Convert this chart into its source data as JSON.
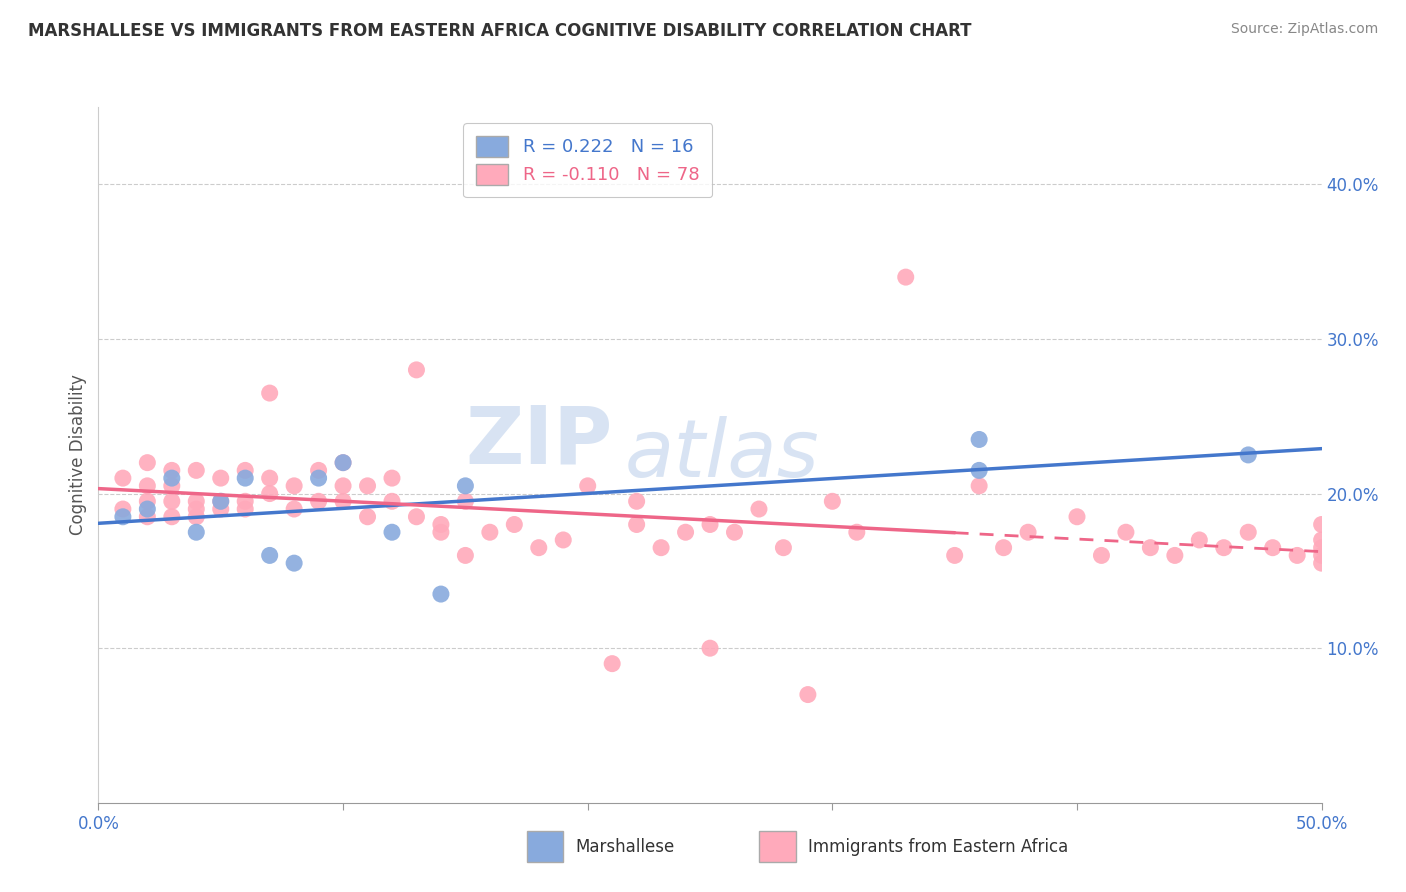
{
  "title": "MARSHALLESE VS IMMIGRANTS FROM EASTERN AFRICA COGNITIVE DISABILITY CORRELATION CHART",
  "source": "Source: ZipAtlas.com",
  "ylabel": "Cognitive Disability",
  "xlim": [
    0.0,
    0.5
  ],
  "ylim": [
    0.0,
    0.45
  ],
  "xticks": [
    0.0,
    0.1,
    0.2,
    0.3,
    0.4,
    0.5
  ],
  "xticklabels": [
    "0.0%",
    "",
    "",
    "",
    "",
    "50.0%"
  ],
  "yticks": [
    0.1,
    0.2,
    0.3,
    0.4
  ],
  "yticklabels": [
    "10.0%",
    "20.0%",
    "30.0%",
    "40.0%"
  ],
  "blue_color": "#88AADD",
  "pink_color": "#FFAABB",
  "blue_line_color": "#4477CC",
  "pink_line_color": "#EE6688",
  "blue_R": 0.222,
  "blue_N": 16,
  "pink_R": -0.11,
  "pink_N": 78,
  "watermark_zip": "ZIP",
  "watermark_atlas": "atlas",
  "blue_x": [
    0.01,
    0.02,
    0.03,
    0.04,
    0.05,
    0.06,
    0.07,
    0.08,
    0.09,
    0.1,
    0.12,
    0.14,
    0.15,
    0.36,
    0.36,
    0.47
  ],
  "blue_y": [
    0.185,
    0.19,
    0.21,
    0.175,
    0.195,
    0.21,
    0.16,
    0.155,
    0.21,
    0.22,
    0.175,
    0.135,
    0.205,
    0.235,
    0.215,
    0.225
  ],
  "pink_x": [
    0.01,
    0.01,
    0.02,
    0.02,
    0.02,
    0.02,
    0.03,
    0.03,
    0.03,
    0.03,
    0.04,
    0.04,
    0.04,
    0.04,
    0.05,
    0.05,
    0.05,
    0.06,
    0.06,
    0.06,
    0.07,
    0.07,
    0.07,
    0.08,
    0.08,
    0.09,
    0.09,
    0.1,
    0.1,
    0.1,
    0.11,
    0.11,
    0.12,
    0.12,
    0.13,
    0.13,
    0.14,
    0.14,
    0.15,
    0.15,
    0.16,
    0.17,
    0.18,
    0.19,
    0.2,
    0.21,
    0.22,
    0.22,
    0.23,
    0.24,
    0.25,
    0.25,
    0.26,
    0.27,
    0.28,
    0.29,
    0.3,
    0.31,
    0.33,
    0.35,
    0.36,
    0.37,
    0.38,
    0.4,
    0.41,
    0.42,
    0.43,
    0.44,
    0.45,
    0.46,
    0.47,
    0.48,
    0.49,
    0.5,
    0.5,
    0.5,
    0.5,
    0.5
  ],
  "pink_y": [
    0.19,
    0.21,
    0.185,
    0.195,
    0.205,
    0.22,
    0.185,
    0.195,
    0.205,
    0.215,
    0.185,
    0.19,
    0.195,
    0.215,
    0.19,
    0.195,
    0.21,
    0.19,
    0.195,
    0.215,
    0.265,
    0.2,
    0.21,
    0.19,
    0.205,
    0.195,
    0.215,
    0.195,
    0.205,
    0.22,
    0.205,
    0.185,
    0.195,
    0.21,
    0.28,
    0.185,
    0.175,
    0.18,
    0.195,
    0.16,
    0.175,
    0.18,
    0.165,
    0.17,
    0.205,
    0.09,
    0.18,
    0.195,
    0.165,
    0.175,
    0.1,
    0.18,
    0.175,
    0.19,
    0.165,
    0.07,
    0.195,
    0.175,
    0.34,
    0.16,
    0.205,
    0.165,
    0.175,
    0.185,
    0.16,
    0.175,
    0.165,
    0.16,
    0.17,
    0.165,
    0.175,
    0.165,
    0.16,
    0.16,
    0.155,
    0.17,
    0.165,
    0.18
  ]
}
